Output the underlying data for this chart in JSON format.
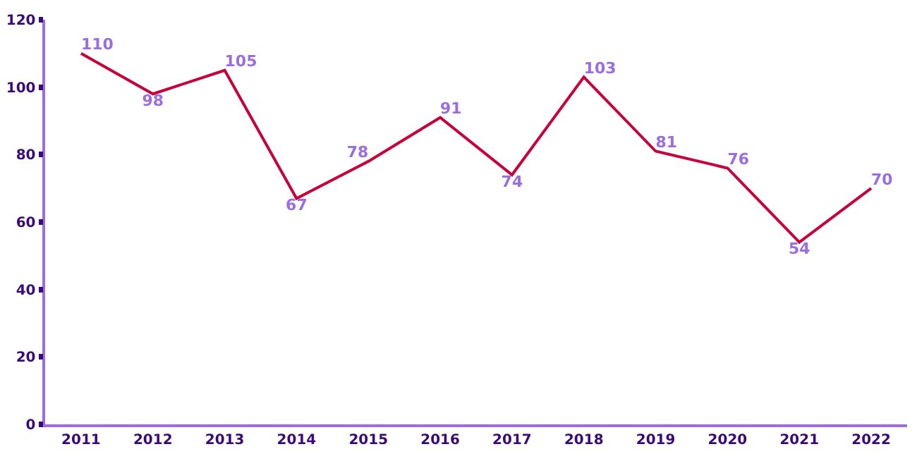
{
  "chart_data": {
    "type": "line",
    "categories": [
      "2011",
      "2012",
      "2013",
      "2014",
      "2015",
      "2016",
      "2017",
      "2018",
      "2019",
      "2020",
      "2021",
      "2022"
    ],
    "series": [
      {
        "color": "#c8003c",
        "values": [
          110,
          98,
          105,
          67,
          78,
          91,
          74,
          103,
          81,
          76,
          54,
          70
        ]
      }
    ],
    "ylim": [
      0,
      120
    ],
    "yticks": [
      0,
      20,
      40,
      60,
      80,
      100,
      120
    ],
    "data_labels": true,
    "grid": false,
    "legend": false,
    "marker": "none",
    "line_style": "solid"
  }
}
